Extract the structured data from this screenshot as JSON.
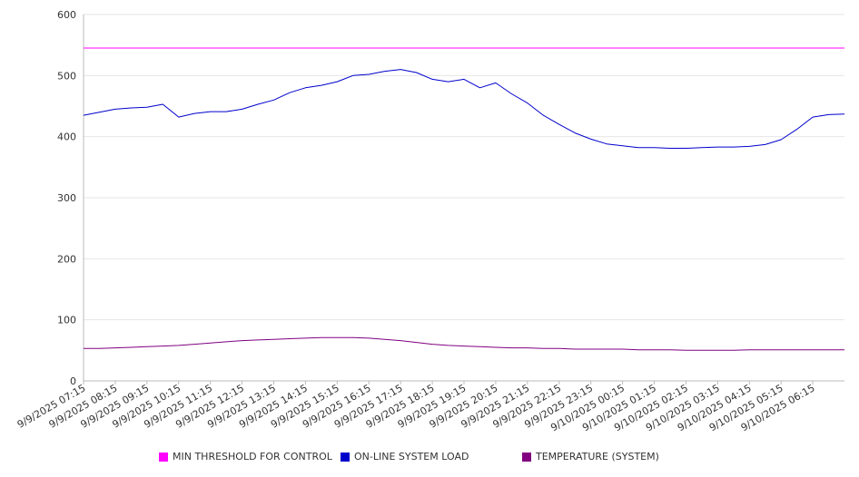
{
  "chart_data": {
    "type": "line",
    "title": "",
    "xlabel": "",
    "ylabel": "",
    "ylim": [
      0,
      600
    ],
    "yticks": [
      0,
      100,
      200,
      300,
      400,
      500,
      600
    ],
    "grid": true,
    "legend_position": "bottom",
    "x_tick_labels": [
      "9/9/2025 07:15",
      "9/9/2025 08:15",
      "9/9/2025 09:15",
      "9/9/2025 10:15",
      "9/9/2025 11:15",
      "9/9/2025 12:15",
      "9/9/2025 13:15",
      "9/9/2025 14:15",
      "9/9/2025 15:15",
      "9/9/2025 16:15",
      "9/9/2025 17:15",
      "9/9/2025 18:15",
      "9/9/2025 19:15",
      "9/9/2025 20:15",
      "9/9/2025 21:15",
      "9/9/2025 22:15",
      "9/9/2025 23:15",
      "9/10/2025 00:15",
      "9/10/2025 01:15",
      "9/10/2025 02:15",
      "9/10/2025 03:15",
      "9/10/2025 04:15",
      "9/10/2025 05:15",
      "9/10/2025 06:15"
    ],
    "x": [
      "9/9/2025 07:15",
      "9/9/2025 07:45",
      "9/9/2025 08:15",
      "9/9/2025 08:45",
      "9/9/2025 09:15",
      "9/9/2025 09:45",
      "9/9/2025 10:15",
      "9/9/2025 10:45",
      "9/9/2025 11:15",
      "9/9/2025 11:45",
      "9/9/2025 12:15",
      "9/9/2025 12:45",
      "9/9/2025 13:15",
      "9/9/2025 13:45",
      "9/9/2025 14:15",
      "9/9/2025 14:45",
      "9/9/2025 15:15",
      "9/9/2025 15:45",
      "9/9/2025 16:15",
      "9/9/2025 16:45",
      "9/9/2025 17:15",
      "9/9/2025 17:45",
      "9/9/2025 18:15",
      "9/9/2025 18:45",
      "9/9/2025 19:15",
      "9/9/2025 19:45",
      "9/9/2025 20:15",
      "9/9/2025 20:45",
      "9/9/2025 21:15",
      "9/9/2025 21:45",
      "9/9/2025 22:15",
      "9/9/2025 22:45",
      "9/9/2025 23:15",
      "9/9/2025 23:45",
      "9/10/2025 00:15",
      "9/10/2025 00:45",
      "9/10/2025 01:15",
      "9/10/2025 01:45",
      "9/10/2025 02:15",
      "9/10/2025 02:45",
      "9/10/2025 03:15",
      "9/10/2025 03:45",
      "9/10/2025 04:15",
      "9/10/2025 04:45",
      "9/10/2025 05:15",
      "9/10/2025 05:45",
      "9/10/2025 06:15",
      "9/10/2025 06:45",
      "9/10/2025 07:15"
    ],
    "series": [
      {
        "name": "MIN THRESHOLD FOR CONTROL",
        "color": "#ff00ff",
        "values": [
          545,
          545,
          545,
          545,
          545,
          545,
          545,
          545,
          545,
          545,
          545,
          545,
          545,
          545,
          545,
          545,
          545,
          545,
          545,
          545,
          545,
          545,
          545,
          545,
          545,
          545,
          545,
          545,
          545,
          545,
          545,
          545,
          545,
          545,
          545,
          545,
          545,
          545,
          545,
          545,
          545,
          545,
          545,
          545,
          545,
          545,
          545,
          545,
          545
        ]
      },
      {
        "name": "ON-LINE SYSTEM LOAD",
        "color": "#0000cc",
        "values": [
          435,
          440,
          445,
          447,
          448,
          453,
          432,
          438,
          441,
          441,
          445,
          453,
          460,
          472,
          480,
          484,
          490,
          500,
          502,
          507,
          510,
          505,
          494,
          490,
          494,
          480,
          488,
          470,
          455,
          435,
          420,
          406,
          396,
          388,
          385,
          382,
          382,
          381,
          381,
          382,
          383,
          383,
          384,
          387,
          395,
          412,
          432,
          436,
          437
        ]
      },
      {
        "name": "TEMPERATURE (SYSTEM)",
        "color": "#800080",
        "values": [
          53,
          53,
          54,
          55,
          56,
          57,
          58,
          60,
          62,
          64,
          66,
          67,
          68,
          69,
          70,
          71,
          71,
          71,
          70,
          68,
          66,
          63,
          60,
          58,
          57,
          56,
          55,
          54,
          54,
          53,
          53,
          52,
          52,
          52,
          52,
          51,
          51,
          51,
          50,
          50,
          50,
          50,
          51,
          51,
          51,
          51,
          51,
          51,
          51
        ]
      }
    ]
  }
}
